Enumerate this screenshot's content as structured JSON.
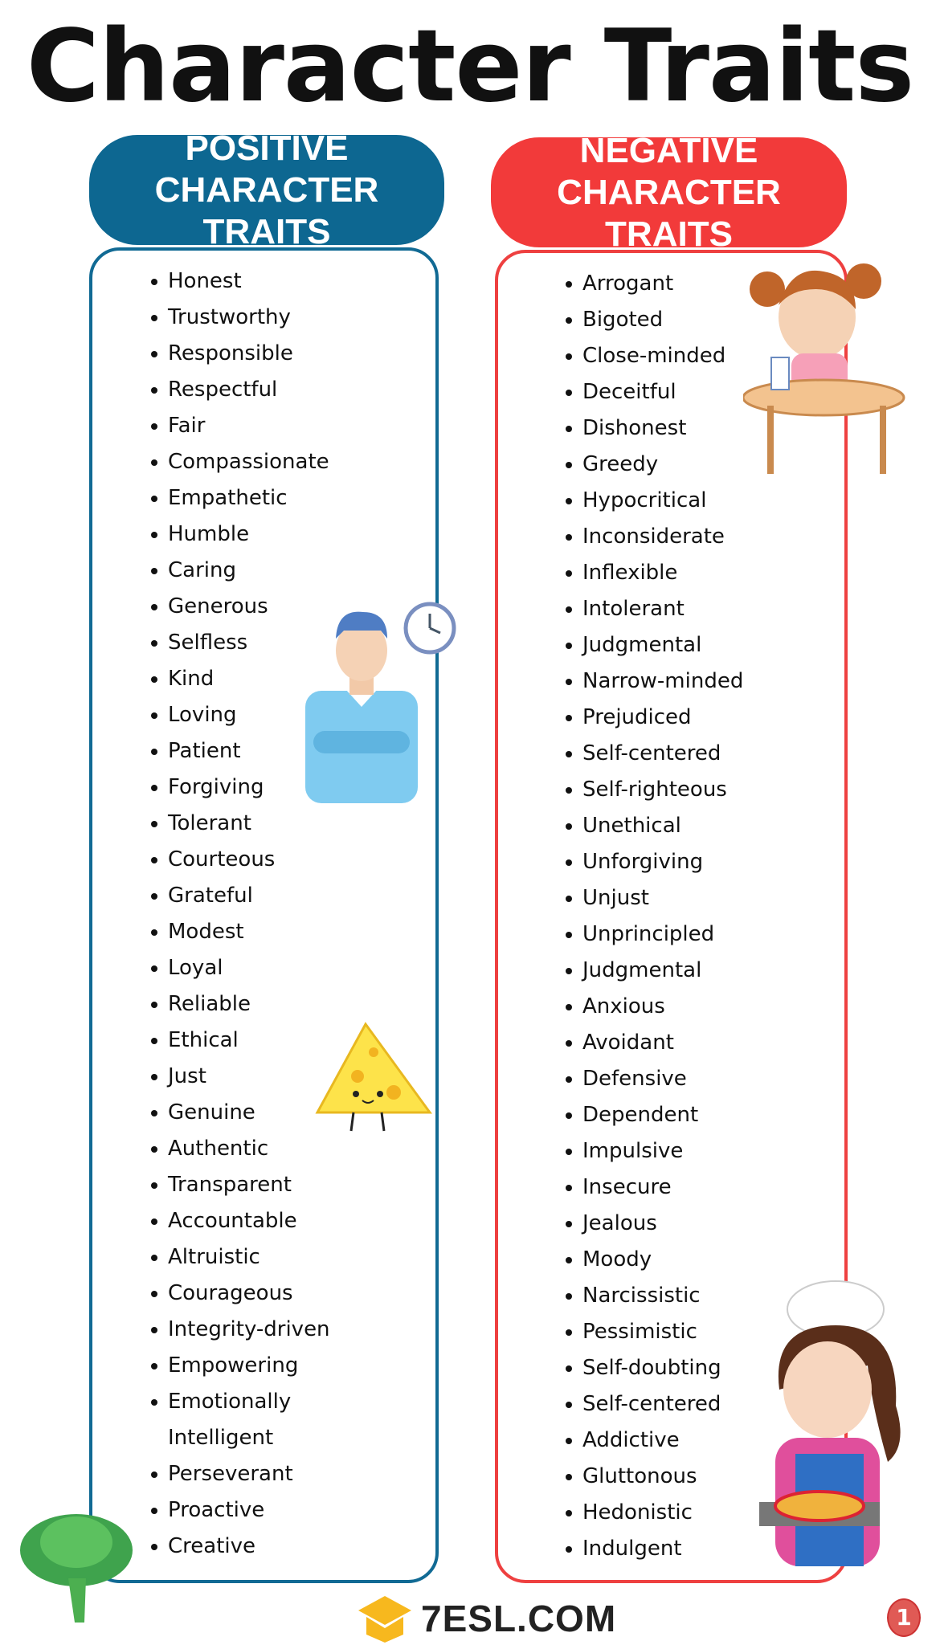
{
  "title": "Character Traits",
  "positive": {
    "header_line1": "POSITIVE",
    "header_line2": "CHARACTER TRAITS",
    "color": "#0d6791",
    "items": [
      "Honest",
      "Trustworthy",
      "Responsible",
      "Respectful",
      "Fair",
      "Compassionate",
      "Empathetic",
      "Humble",
      "Caring",
      "Generous",
      "Selfless",
      "Kind",
      "Loving",
      "Patient",
      "Forgiving",
      "Tolerant",
      "Courteous",
      "Grateful",
      "Modest",
      "Loyal",
      "Reliable",
      "Ethical",
      "Just",
      "Genuine",
      "Authentic",
      "Transparent",
      "Accountable",
      "Altruistic",
      "Courageous",
      "Integrity-driven",
      "Empowering",
      "Emotionally Intelligent",
      "Perseverant",
      "Proactive",
      "Creative"
    ]
  },
  "negative": {
    "header_line1": "NEGATIVE",
    "header_line2": "CHARACTER TRAITS",
    "color": "#f23a3a",
    "items": [
      "Arrogant",
      "Bigoted",
      "Close-minded",
      "Deceitful",
      "Dishonest",
      "Greedy",
      "Hypocritical",
      "Inconsiderate",
      "Inflexible",
      "Intolerant",
      "Judgmental",
      "Narrow-minded",
      "Prejudiced",
      "Self-centered",
      "Self-righteous",
      "Unethical",
      "Unforgiving",
      "Unjust",
      "Unprincipled",
      "Judgmental",
      "Anxious",
      "Avoidant",
      "Defensive",
      "Dependent",
      "Impulsive",
      "Insecure",
      "Jealous",
      "Moody",
      "Narcissistic",
      "Pessimistic",
      "Self-doubting",
      "Self-centered",
      "Addictive",
      "Gluttonous",
      "Hedonistic",
      "Indulgent"
    ]
  },
  "footer": {
    "logo": "7ESL.COM",
    "page_number": "1"
  },
  "illustrations": [
    "girl-at-table",
    "angry-man-with-clock",
    "cheese-character",
    "lettuce",
    "girl-chef-with-pizza"
  ]
}
